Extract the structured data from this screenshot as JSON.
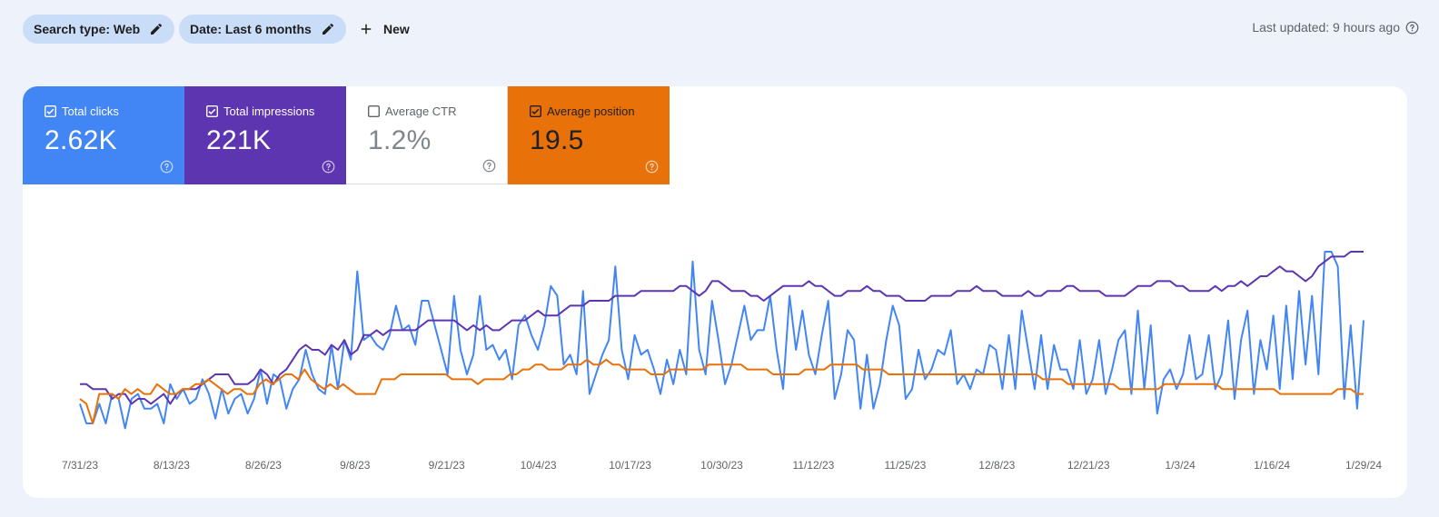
{
  "filters": {
    "search_type_label": "Search type: Web",
    "date_label": "Date: Last 6 months",
    "new_label": "New"
  },
  "status": {
    "last_updated": "Last updated: 9 hours ago"
  },
  "metrics": [
    {
      "label": "Total clicks",
      "value": "2.62K",
      "checked": true,
      "color": "#4285f4"
    },
    {
      "label": "Total impressions",
      "value": "221K",
      "checked": true,
      "color": "#5e35b1"
    },
    {
      "label": "Average CTR",
      "value": "1.2%",
      "checked": false,
      "color": "#ffffff"
    },
    {
      "label": "Average position",
      "value": "19.5",
      "checked": true,
      "color": "#e8710a"
    }
  ],
  "chart_data": {
    "type": "line",
    "x_tick_labels": [
      "7/31/23",
      "8/13/23",
      "8/26/23",
      "9/8/23",
      "9/21/23",
      "10/4/23",
      "10/17/23",
      "10/30/23",
      "11/12/23",
      "11/25/23",
      "12/8/23",
      "12/21/23",
      "1/3/24",
      "1/16/24",
      "1/29/24"
    ],
    "series": [
      {
        "name": "Total clicks",
        "color": "#4285f4",
        "values": [
          18,
          10,
          10,
          18,
          10,
          22,
          20,
          8,
          20,
          22,
          16,
          16,
          18,
          10,
          26,
          20,
          24,
          18,
          20,
          28,
          22,
          12,
          24,
          14,
          20,
          22,
          14,
          20,
          32,
          18,
          30,
          28,
          16,
          24,
          28,
          40,
          30,
          24,
          22,
          42,
          24,
          44,
          36,
          72,
          44,
          46,
          42,
          40,
          46,
          58,
          48,
          50,
          42,
          60,
          60,
          50,
          40,
          30,
          62,
          40,
          30,
          38,
          62,
          40,
          42,
          36,
          40,
          28,
          50,
          54,
          46,
          40,
          50,
          66,
          62,
          34,
          38,
          30,
          64,
          22,
          30,
          38,
          44,
          74,
          40,
          28,
          46,
          38,
          40,
          32,
          22,
          36,
          26,
          40,
          30,
          76,
          40,
          30,
          60,
          44,
          26,
          34,
          46,
          58,
          44,
          48,
          48,
          62,
          40,
          24,
          62,
          40,
          56,
          38,
          30,
          46,
          60,
          20,
          30,
          48,
          44,
          16,
          38,
          16,
          26,
          44,
          58,
          50,
          20,
          24,
          40,
          28,
          32,
          40,
          38,
          48,
          26,
          30,
          24,
          32,
          30,
          42,
          40,
          24,
          46,
          24,
          56,
          40,
          24,
          46,
          24,
          42,
          32,
          32,
          24,
          44,
          22,
          28,
          44,
          22,
          32,
          44,
          48,
          22,
          56,
          24,
          50,
          14,
          28,
          32,
          24,
          30,
          46,
          28,
          30,
          46,
          24,
          30,
          52,
          20,
          44,
          56,
          22,
          44,
          32,
          54,
          24,
          58,
          28,
          64,
          34,
          62,
          30,
          80,
          80,
          74,
          20,
          50,
          16,
          52
        ]
      },
      {
        "name": "Total impressions",
        "color": "#5e35b1",
        "values": [
          26,
          26,
          24,
          24,
          24,
          20,
          22,
          22,
          18,
          20,
          20,
          18,
          20,
          22,
          18,
          22,
          24,
          24,
          24,
          26,
          28,
          30,
          30,
          30,
          26,
          26,
          26,
          28,
          32,
          30,
          26,
          30,
          32,
          36,
          40,
          42,
          40,
          40,
          38,
          42,
          40,
          44,
          38,
          40,
          46,
          46,
          48,
          46,
          48,
          48,
          48,
          48,
          48,
          50,
          52,
          52,
          52,
          52,
          52,
          50,
          48,
          50,
          48,
          50,
          48,
          48,
          50,
          52,
          52,
          52,
          54,
          56,
          54,
          54,
          54,
          56,
          58,
          58,
          58,
          60,
          60,
          60,
          60,
          62,
          62,
          62,
          62,
          64,
          64,
          64,
          64,
          64,
          64,
          66,
          66,
          64,
          62,
          64,
          68,
          68,
          66,
          64,
          64,
          64,
          62,
          62,
          60,
          62,
          64,
          66,
          66,
          66,
          66,
          68,
          66,
          66,
          64,
          62,
          62,
          64,
          64,
          64,
          66,
          64,
          64,
          62,
          62,
          62,
          60,
          60,
          60,
          60,
          62,
          62,
          62,
          62,
          64,
          64,
          64,
          66,
          64,
          64,
          64,
          62,
          62,
          62,
          62,
          64,
          62,
          62,
          64,
          64,
          64,
          66,
          66,
          64,
          64,
          64,
          64,
          62,
          62,
          62,
          62,
          64,
          66,
          66,
          66,
          68,
          68,
          68,
          66,
          66,
          64,
          64,
          64,
          64,
          66,
          64,
          66,
          66,
          68,
          66,
          68,
          70,
          70,
          72,
          74,
          72,
          72,
          70,
          68,
          70,
          74,
          76,
          78,
          78,
          78,
          80,
          80,
          80
        ]
      },
      {
        "name": "Average position",
        "color": "#e8710a",
        "values": [
          20,
          18,
          10,
          22,
          22,
          22,
          20,
          24,
          22,
          24,
          22,
          22,
          26,
          24,
          22,
          22,
          24,
          24,
          26,
          26,
          28,
          26,
          24,
          22,
          24,
          24,
          22,
          22,
          26,
          28,
          26,
          28,
          30,
          30,
          28,
          32,
          28,
          26,
          24,
          26,
          24,
          26,
          24,
          22,
          22,
          22,
          22,
          28,
          28,
          28,
          30,
          30,
          30,
          30,
          30,
          30,
          30,
          30,
          28,
          28,
          28,
          28,
          26,
          28,
          28,
          28,
          28,
          30,
          30,
          32,
          32,
          34,
          34,
          32,
          32,
          32,
          34,
          34,
          34,
          36,
          34,
          34,
          36,
          34,
          34,
          32,
          32,
          32,
          32,
          30,
          30,
          30,
          32,
          32,
          32,
          32,
          32,
          32,
          34,
          34,
          34,
          34,
          34,
          34,
          32,
          32,
          32,
          32,
          30,
          30,
          30,
          30,
          30,
          32,
          32,
          32,
          32,
          34,
          34,
          34,
          34,
          34,
          32,
          32,
          32,
          32,
          30,
          30,
          30,
          30,
          30,
          30,
          30,
          30,
          30,
          30,
          30,
          30,
          30,
          30,
          30,
          30,
          30,
          30,
          30,
          30,
          30,
          30,
          30,
          30,
          28,
          28,
          28,
          28,
          26,
          26,
          26,
          26,
          26,
          26,
          26,
          26,
          24,
          24,
          24,
          24,
          24,
          24,
          24,
          26,
          26,
          26,
          26,
          26,
          26,
          26,
          26,
          26,
          24,
          24,
          24,
          24,
          24,
          24,
          24,
          24,
          24,
          22,
          22,
          22,
          22,
          22,
          22,
          22,
          22,
          22,
          24,
          24,
          24,
          22,
          22
        ]
      }
    ],
    "xlabel": "",
    "ylabel": "",
    "grid": false,
    "legend": "none"
  }
}
